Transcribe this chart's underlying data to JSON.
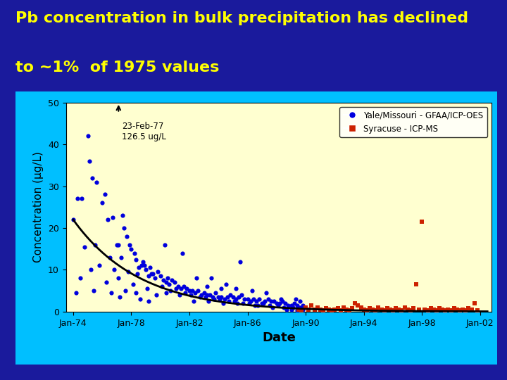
{
  "title_line1": "Pb concentration in bulk precipitation has declined",
  "title_line2": "to ~1%  of 1975 values",
  "title_color": "#FFFF00",
  "title_fontsize": 16,
  "background_outer": "#1a1a9c",
  "background_inner": "#00bfff",
  "plot_bg": "#ffffd0",
  "xlabel": "Date",
  "ylabel": "Concentration (μg/L)",
  "xlabel_fontsize": 13,
  "ylabel_fontsize": 11,
  "ylim": [
    0,
    50
  ],
  "yticks": [
    0,
    10,
    20,
    30,
    40,
    50
  ],
  "xtick_years": [
    1974,
    1978,
    1982,
    1986,
    1990,
    1994,
    1998,
    2002
  ],
  "xtick_labels": [
    "Jan-74",
    "Jan-78",
    "Jan-82",
    "Jan-86",
    "Jan-90",
    "Jan-94",
    "Jan-98",
    "Jan-02"
  ],
  "annotation_text": "23-Feb-77\n126.5 ug/L",
  "legend1_label": "Yale/Missouri - GFAA/ICP-OES",
  "legend2_label": "Syracuse - ICP-MS",
  "blue_dot_color": "#0000dd",
  "orange_sq_color": "#cc2200",
  "curve_color": "#000000",
  "curve_A": 22.0,
  "curve_k": 0.22,
  "curve_t0": 1974.0,
  "xlim": [
    1973.5,
    2002.8
  ],
  "blue_dots": [
    [
      1974.0,
      22.0
    ],
    [
      1974.3,
      27.0
    ],
    [
      1974.6,
      27.0
    ],
    [
      1975.0,
      42.0
    ],
    [
      1975.1,
      36.0
    ],
    [
      1975.3,
      32.0
    ],
    [
      1975.6,
      31.0
    ],
    [
      1976.0,
      26.0
    ],
    [
      1976.2,
      28.0
    ],
    [
      1976.4,
      22.0
    ],
    [
      1976.7,
      22.5
    ],
    [
      1977.0,
      16.0
    ],
    [
      1977.1,
      16.0
    ],
    [
      1977.3,
      13.0
    ],
    [
      1977.5,
      20.0
    ],
    [
      1977.7,
      18.0
    ],
    [
      1977.9,
      16.0
    ],
    [
      1978.0,
      15.0
    ],
    [
      1978.2,
      14.0
    ],
    [
      1978.3,
      12.5
    ],
    [
      1978.5,
      10.5
    ],
    [
      1978.7,
      11.0
    ],
    [
      1978.9,
      11.0
    ],
    [
      1979.0,
      10.0
    ],
    [
      1979.2,
      8.5
    ],
    [
      1979.4,
      9.0
    ],
    [
      1979.6,
      8.0
    ],
    [
      1979.8,
      9.5
    ],
    [
      1980.0,
      8.5
    ],
    [
      1980.2,
      7.5
    ],
    [
      1980.4,
      7.0
    ],
    [
      1980.6,
      6.5
    ],
    [
      1980.8,
      7.5
    ],
    [
      1981.0,
      7.0
    ],
    [
      1981.2,
      6.0
    ],
    [
      1981.4,
      5.5
    ],
    [
      1981.6,
      6.0
    ],
    [
      1981.8,
      5.5
    ],
    [
      1982.0,
      5.0
    ],
    [
      1982.2,
      5.0
    ],
    [
      1982.4,
      4.5
    ],
    [
      1982.6,
      5.0
    ],
    [
      1982.8,
      4.0
    ],
    [
      1983.0,
      4.5
    ],
    [
      1983.2,
      4.0
    ],
    [
      1983.4,
      4.0
    ],
    [
      1983.6,
      3.5
    ],
    [
      1983.8,
      4.5
    ],
    [
      1984.0,
      3.5
    ],
    [
      1984.2,
      3.5
    ],
    [
      1984.4,
      3.0
    ],
    [
      1984.6,
      3.5
    ],
    [
      1984.8,
      4.0
    ],
    [
      1985.0,
      3.5
    ],
    [
      1985.2,
      3.0
    ],
    [
      1985.4,
      3.5
    ],
    [
      1985.6,
      4.0
    ],
    [
      1985.8,
      3.0
    ],
    [
      1986.0,
      3.0
    ],
    [
      1986.2,
      2.5
    ],
    [
      1986.4,
      3.0
    ],
    [
      1986.6,
      2.5
    ],
    [
      1986.8,
      3.0
    ],
    [
      1987.0,
      2.0
    ],
    [
      1987.2,
      2.5
    ],
    [
      1987.4,
      3.0
    ],
    [
      1987.6,
      2.5
    ],
    [
      1987.8,
      2.5
    ],
    [
      1988.0,
      2.0
    ],
    [
      1988.2,
      2.0
    ],
    [
      1988.4,
      2.5
    ],
    [
      1988.6,
      2.0
    ],
    [
      1988.8,
      1.5
    ],
    [
      1989.0,
      1.5
    ],
    [
      1989.2,
      2.0
    ],
    [
      1989.4,
      1.5
    ],
    [
      1989.6,
      1.0
    ],
    [
      1989.8,
      1.5
    ],
    [
      1974.8,
      15.5
    ],
    [
      1975.5,
      16.0
    ],
    [
      1976.5,
      13.0
    ],
    [
      1977.4,
      23.0
    ],
    [
      1978.8,
      12.0
    ],
    [
      1979.3,
      10.5
    ],
    [
      1980.3,
      16.0
    ],
    [
      1981.5,
      14.0
    ],
    [
      1985.5,
      12.0
    ],
    [
      1982.5,
      8.0
    ],
    [
      1983.5,
      8.0
    ],
    [
      1984.5,
      6.5
    ],
    [
      1975.8,
      11.0
    ],
    [
      1976.8,
      10.0
    ],
    [
      1977.8,
      9.5
    ],
    [
      1978.4,
      9.0
    ],
    [
      1979.5,
      9.0
    ],
    [
      1980.5,
      8.0
    ],
    [
      1983.2,
      6.0
    ],
    [
      1984.2,
      5.5
    ],
    [
      1985.2,
      5.5
    ],
    [
      1986.3,
      5.0
    ],
    [
      1987.3,
      4.5
    ],
    [
      1988.3,
      3.0
    ],
    [
      1989.3,
      3.0
    ],
    [
      1989.6,
      2.5
    ],
    [
      1974.5,
      8.0
    ],
    [
      1975.2,
      10.0
    ],
    [
      1976.3,
      7.0
    ],
    [
      1977.1,
      8.0
    ],
    [
      1978.1,
      6.5
    ],
    [
      1979.1,
      5.5
    ],
    [
      1980.1,
      6.0
    ],
    [
      1981.1,
      5.5
    ],
    [
      1982.1,
      4.0
    ],
    [
      1983.1,
      3.5
    ],
    [
      1984.1,
      3.0
    ],
    [
      1985.1,
      2.5
    ],
    [
      1986.1,
      2.0
    ],
    [
      1987.1,
      2.0
    ],
    [
      1988.1,
      1.5
    ],
    [
      1989.1,
      1.0
    ],
    [
      1989.5,
      0.5
    ],
    [
      1989.8,
      0.5
    ],
    [
      1974.2,
      4.5
    ],
    [
      1975.4,
      5.0
    ],
    [
      1976.6,
      4.5
    ],
    [
      1977.2,
      3.5
    ],
    [
      1978.6,
      3.0
    ],
    [
      1979.2,
      2.5
    ],
    [
      1980.4,
      4.5
    ],
    [
      1981.3,
      4.0
    ],
    [
      1982.3,
      2.5
    ],
    [
      1983.3,
      2.5
    ],
    [
      1984.3,
      2.0
    ],
    [
      1985.3,
      2.0
    ],
    [
      1986.5,
      1.5
    ],
    [
      1987.5,
      1.5
    ],
    [
      1988.5,
      1.0
    ],
    [
      1989.0,
      0.5
    ],
    [
      1989.4,
      0.3
    ],
    [
      1977.6,
      5.0
    ],
    [
      1978.3,
      4.5
    ],
    [
      1979.7,
      4.0
    ],
    [
      1980.7,
      5.0
    ],
    [
      1981.7,
      4.5
    ],
    [
      1982.7,
      3.5
    ],
    [
      1983.7,
      3.0
    ],
    [
      1984.7,
      2.5
    ],
    [
      1985.7,
      2.0
    ],
    [
      1986.7,
      1.5
    ],
    [
      1987.7,
      1.0
    ],
    [
      1988.7,
      0.5
    ]
  ],
  "orange_squares": [
    [
      1989.5,
      0.5
    ],
    [
      1989.7,
      0.3
    ],
    [
      1990.0,
      1.0
    ],
    [
      1990.2,
      0.5
    ],
    [
      1990.4,
      1.5
    ],
    [
      1990.6,
      0.5
    ],
    [
      1990.8,
      1.0
    ],
    [
      1991.0,
      0.5
    ],
    [
      1991.2,
      0.3
    ],
    [
      1991.4,
      0.8
    ],
    [
      1991.6,
      0.5
    ],
    [
      1991.8,
      0.3
    ],
    [
      1992.0,
      0.5
    ],
    [
      1992.2,
      0.8
    ],
    [
      1992.4,
      0.3
    ],
    [
      1992.6,
      1.0
    ],
    [
      1992.8,
      0.5
    ],
    [
      1993.0,
      0.3
    ],
    [
      1993.2,
      0.8
    ],
    [
      1993.4,
      2.0
    ],
    [
      1993.6,
      1.5
    ],
    [
      1993.8,
      1.0
    ],
    [
      1994.0,
      0.5
    ],
    [
      1994.2,
      0.3
    ],
    [
      1994.4,
      0.8
    ],
    [
      1994.6,
      0.5
    ],
    [
      1994.8,
      0.3
    ],
    [
      1995.0,
      1.0
    ],
    [
      1995.2,
      0.5
    ],
    [
      1995.4,
      0.3
    ],
    [
      1995.6,
      0.8
    ],
    [
      1995.8,
      0.5
    ],
    [
      1996.0,
      0.3
    ],
    [
      1996.2,
      0.8
    ],
    [
      1996.4,
      0.5
    ],
    [
      1996.6,
      0.3
    ],
    [
      1996.8,
      1.0
    ],
    [
      1997.0,
      0.5
    ],
    [
      1997.2,
      0.3
    ],
    [
      1997.4,
      0.8
    ],
    [
      1997.6,
      6.5
    ],
    [
      1997.8,
      0.5
    ],
    [
      1998.0,
      21.5
    ],
    [
      1998.2,
      0.5
    ],
    [
      1998.4,
      0.3
    ],
    [
      1998.6,
      0.8
    ],
    [
      1998.8,
      0.5
    ],
    [
      1999.0,
      0.3
    ],
    [
      1999.2,
      0.8
    ],
    [
      1999.4,
      0.5
    ],
    [
      1999.6,
      0.3
    ],
    [
      1999.8,
      0.5
    ],
    [
      2000.0,
      0.3
    ],
    [
      2000.2,
      0.8
    ],
    [
      2000.4,
      0.5
    ],
    [
      2000.6,
      0.3
    ],
    [
      2000.8,
      0.5
    ],
    [
      2001.0,
      0.3
    ],
    [
      2001.2,
      0.8
    ],
    [
      2001.4,
      0.5
    ],
    [
      2001.6,
      2.0
    ],
    [
      2001.8,
      0.3
    ]
  ]
}
